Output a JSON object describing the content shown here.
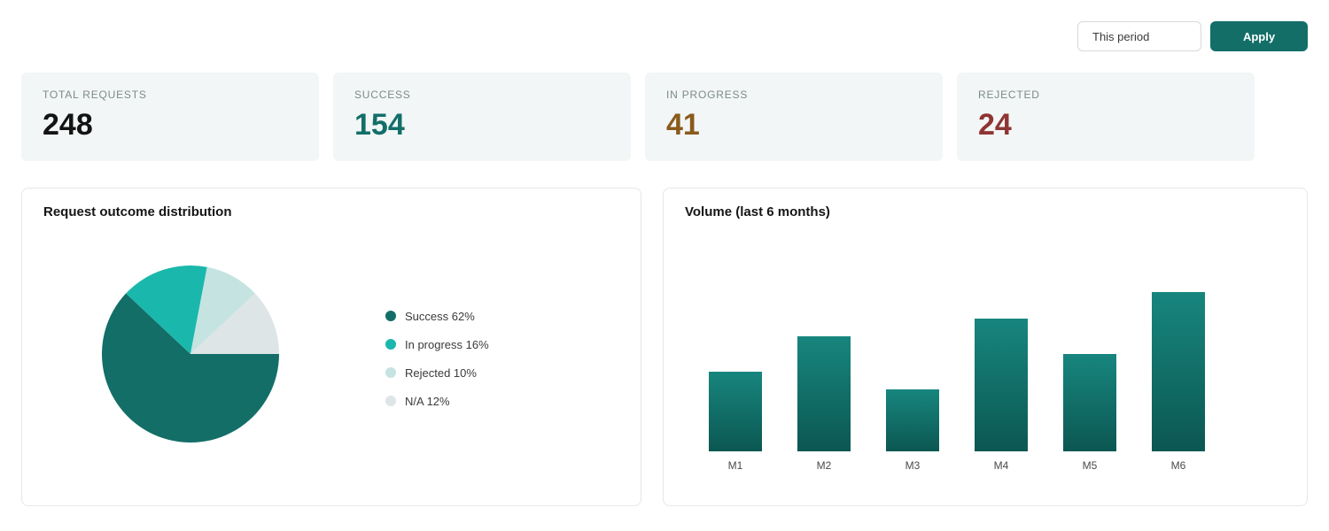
{
  "filter": {
    "period_value": "This period",
    "apply_label": "Apply"
  },
  "stats": [
    {
      "label": "TOTAL REQUESTS",
      "value": "248",
      "color": "#141414"
    },
    {
      "label": "SUCCESS",
      "value": "154",
      "color": "#136e68"
    },
    {
      "label": "IN PROGRESS",
      "value": "41",
      "color": "#8a5a1c"
    },
    {
      "label": "REJECTED",
      "value": "24",
      "color": "#8f3434"
    }
  ],
  "pie_panel": {
    "title": "Request outcome distribution",
    "legend": [
      {
        "label": "Success 62%",
        "color": "#136e68"
      },
      {
        "label": "In progress 16%",
        "color": "#1ab8ac"
      },
      {
        "label": "Rejected 10%",
        "color": "#c5e3e1"
      },
      {
        "label": "N/A 12%",
        "color": "#dde5e6"
      }
    ]
  },
  "bar_panel": {
    "title": "Volume (last 6 months)"
  },
  "chart_data": [
    {
      "type": "pie",
      "categories": [
        "Success",
        "In progress",
        "Rejected",
        "N/A"
      ],
      "values": [
        62,
        16,
        10,
        12
      ],
      "colors": [
        "#136e68",
        "#1ab8ac",
        "#c5e3e1",
        "#dde5e6"
      ]
    },
    {
      "type": "bar",
      "categories": [
        "M1",
        "M2",
        "M3",
        "M4",
        "M5",
        "M6"
      ],
      "values": [
        90,
        130,
        70,
        150,
        110,
        180
      ],
      "colors": {
        "bar_top": "#17867e",
        "bar_bottom": "#0c5752"
      }
    }
  ]
}
